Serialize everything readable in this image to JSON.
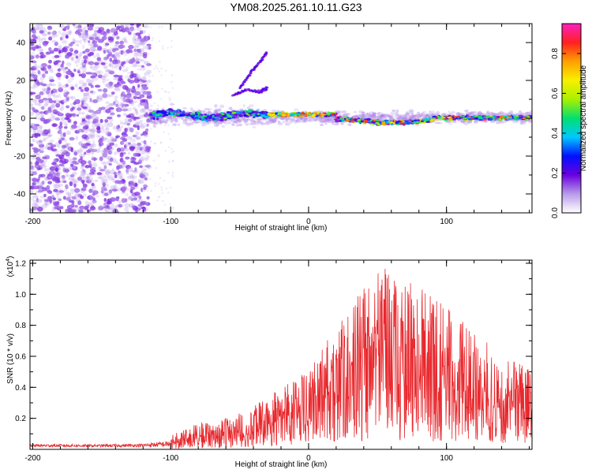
{
  "title": "YM08.2025.261.10.11.G23",
  "chart_data": [
    {
      "type": "heatmap",
      "name": "spectrogram",
      "xlabel": "Height of straight line (km)",
      "ylabel": "Frequency (Hz)",
      "xlim": [
        -202,
        162
      ],
      "ylim": [
        -50,
        50
      ],
      "xticks": [
        -200,
        -100,
        0,
        100
      ],
      "yticks": [
        -40,
        -20,
        0,
        20,
        40
      ],
      "colorbar": {
        "label": "Normalized spectral amplitude",
        "range": [
          0.0,
          0.95
        ],
        "ticks": [
          "0.0",
          "0.2",
          "0.4",
          "0.6",
          "0.8"
        ],
        "colormap": [
          "#ffffff",
          "#b89be8",
          "#6a00e0",
          "#0010ff",
          "#00c8ff",
          "#00e070",
          "#a8f000",
          "#f8f000",
          "#ffa000",
          "#ff2020",
          "#ff20c0"
        ]
      },
      "features": [
        {
          "name": "noise-region",
          "x_range": [
            -202,
            -115
          ],
          "freq_range": [
            -50,
            50
          ]
        },
        {
          "name": "signal-track",
          "x_range": [
            -115,
            162
          ],
          "center_freq": 0
        },
        {
          "name": "curve-upper",
          "points": [
            [
              -50,
              16
            ],
            [
              -42,
              24
            ],
            [
              -35,
              30
            ],
            [
              -30,
              35
            ]
          ]
        },
        {
          "name": "curve-lower",
          "points": [
            [
              -55,
              12
            ],
            [
              -45,
              15
            ],
            [
              -35,
              14
            ],
            [
              -30,
              16
            ]
          ]
        }
      ]
    },
    {
      "type": "line",
      "name": "snr",
      "xlabel": "Height of straight line (km)",
      "ylabel": "SNR (10 * v/v)",
      "exponent_label": "(x10",
      "exponent_power": "4",
      "exponent_close": ")",
      "xlim": [
        -202,
        162
      ],
      "ylim": [
        0,
        12200
      ],
      "xticks": [
        -200,
        -100,
        0,
        100
      ],
      "yticks": [
        0.2,
        0.4,
        0.6,
        0.8,
        1.0,
        1.2
      ],
      "ytick_labels": [
        "0.2",
        "0.4",
        "0.6",
        "0.8",
        "1.0",
        "1.2"
      ],
      "color": "#e8282d",
      "envelope": [
        {
          "x": -202,
          "max": 500
        },
        {
          "x": -150,
          "max": 450
        },
        {
          "x": -120,
          "max": 550
        },
        {
          "x": -100,
          "max": 900
        },
        {
          "x": -80,
          "max": 1700
        },
        {
          "x": -60,
          "max": 2000
        },
        {
          "x": -40,
          "max": 2800
        },
        {
          "x": -20,
          "max": 4200
        },
        {
          "x": 0,
          "max": 5000
        },
        {
          "x": 10,
          "max": 6500
        },
        {
          "x": 30,
          "max": 9500
        },
        {
          "x": 55,
          "max": 11800
        },
        {
          "x": 80,
          "max": 10500
        },
        {
          "x": 100,
          "max": 9200
        },
        {
          "x": 120,
          "max": 7800
        },
        {
          "x": 140,
          "max": 6000
        },
        {
          "x": 162,
          "max": 5500
        }
      ]
    }
  ]
}
